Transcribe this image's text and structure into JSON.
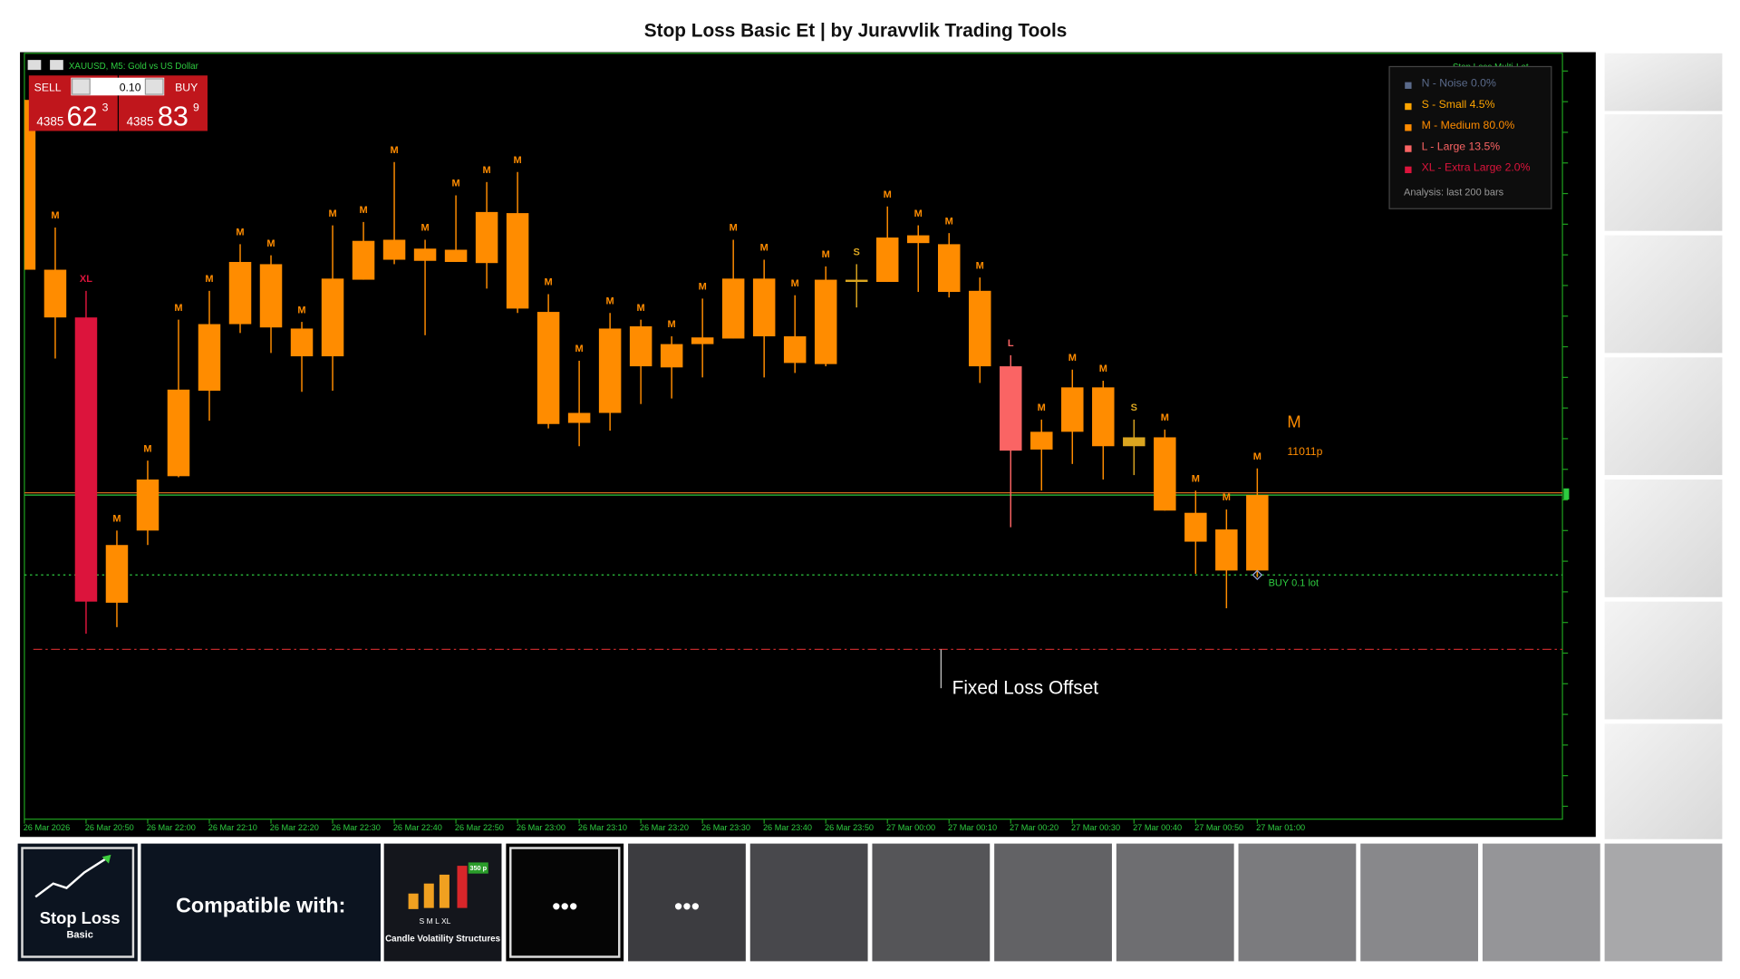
{
  "title": "Stop Loss Basic Et | by Juravvlik Trading Tools",
  "toolbar": {
    "symbol": "XAUUSD, M5:  Gold vs US Dollar",
    "sell": "SELL",
    "buy": "BUY",
    "lot": "0.10",
    "bid": {
      "small": "4385",
      "big": "62",
      "sup": "3"
    },
    "ask": {
      "small": "4385",
      "big": "83",
      "sup": "9"
    }
  },
  "legend": {
    "title": "Stop Loss Multi-Lot",
    "entries": [
      {
        "text": "N - Noise 0.0%",
        "color": "#5a6a8a"
      },
      {
        "text": "S - Small 4.5%",
        "color": "#ffa500"
      },
      {
        "text": "M - Medium 80.0%",
        "color": "#ff8c00"
      },
      {
        "text": "L - Large 13.5%",
        "color": "#fa6464"
      },
      {
        "text": "XL - Extra Large 2.0%",
        "color": "#dc143c"
      }
    ],
    "note": "Analysis: last 200 bars"
  },
  "annotations": {
    "current_class": "M",
    "current_size": "11011p",
    "order": "BUY 0.1 lot",
    "offset": "Fixed Loss Offset"
  },
  "chart_data": {
    "type": "candlestick",
    "categories": [
      "26 Mar 2026",
      null,
      "26 Mar 20:50",
      null,
      "26 Mar 22:00",
      null,
      "26 Mar 22:10",
      null,
      "26 Mar 22:20",
      null,
      "26 Mar 22:30",
      null,
      "26 Mar 22:40",
      null,
      "26 Mar 22:50",
      null,
      "26 Mar 23:00",
      null,
      "26 Mar 23:10",
      null,
      "26 Mar 23:20",
      null,
      "26 Mar 23:30",
      null,
      "26 Mar 23:40",
      null,
      "26 Mar 23:50",
      null,
      "27 Mar 00:00",
      null,
      "27 Mar 00:10",
      null,
      "27 Mar 00:20",
      null,
      "27 Mar 00:30",
      null,
      "27 Mar 00:40",
      null,
      "27 Mar 00:50",
      null,
      "27 Mar 01:00"
    ],
    "labels": [
      null,
      "M",
      "XL",
      "M",
      "M",
      "M",
      "M",
      "M",
      "M",
      "M",
      "M",
      "M",
      "M",
      "M",
      "M",
      "M",
      "M",
      "M",
      "M",
      "M",
      "M",
      "M",
      "M",
      "M",
      "M",
      "M",
      "M",
      "S",
      "M",
      "M",
      "M",
      "M",
      "L",
      "M",
      "M",
      "M",
      "S",
      "M",
      "M",
      "M",
      "M"
    ],
    "open": [
      4421.1,
      4405.8,
      4401.5,
      4381.0,
      4386.9,
      4395.0,
      4400.9,
      4406.5,
      4406.3,
      4400.5,
      4405.0,
      4408.4,
      4408.5,
      4407.7,
      4407.6,
      4411.0,
      4410.9,
      4402.0,
      4392.9,
      4400.5,
      4400.7,
      4399.1,
      4399.7,
      4405.0,
      4405.0,
      4399.8,
      4404.9,
      4404.9,
      4408.7,
      4408.9,
      4408.1,
      4403.9,
      4397.1,
      4391.2,
      4395.2,
      4395.2,
      4390.7,
      4390.7,
      4383.9,
      4382.4,
      4385.5
    ],
    "high": [
      4421.1,
      4409.6,
      4403.9,
      4382.3,
      4388.6,
      4401.3,
      4403.9,
      4408.1,
      4407.1,
      4401.1,
      4409.8,
      4410.1,
      4415.5,
      4408.5,
      4412.5,
      4413.7,
      4414.6,
      4403.6,
      4397.6,
      4401.9,
      4401.3,
      4399.8,
      4403.2,
      4408.5,
      4406.7,
      4403.5,
      4406.1,
      4406.3,
      4411.5,
      4409.8,
      4409.1,
      4405.1,
      4398.1,
      4392.3,
      4396.8,
      4395.8,
      4392.3,
      4391.4,
      4385.9,
      4384.2,
      4387.9
    ],
    "low": [
      4405.8,
      4397.8,
      4373.0,
      4373.6,
      4381.0,
      4387.1,
      4392.2,
      4400.1,
      4398.3,
      4394.8,
      4394.9,
      4404.9,
      4406.3,
      4399.9,
      4406.5,
      4404.1,
      4401.9,
      4391.5,
      4389.9,
      4391.3,
      4393.7,
      4394.2,
      4396.1,
      4399.6,
      4396.1,
      4396.5,
      4397.1,
      4402.4,
      4404.7,
      4403.8,
      4403.3,
      4395.6,
      4382.6,
      4385.9,
      4388.3,
      4386.9,
      4387.3,
      4384.1,
      4378.4,
      4375.3,
      4378.1
    ],
    "close": [
      4405.8,
      4401.5,
      4375.9,
      4375.8,
      4382.3,
      4387.2,
      4394.9,
      4400.9,
      4400.6,
      4398.0,
      4398.0,
      4404.9,
      4406.7,
      4406.6,
      4406.5,
      4406.4,
      4402.3,
      4391.9,
      4392.0,
      4392.9,
      4397.1,
      4397.0,
      4399.1,
      4399.6,
      4399.8,
      4397.4,
      4397.3,
      4404.7,
      4404.7,
      4408.2,
      4403.8,
      4397.1,
      4389.5,
      4389.6,
      4391.2,
      4389.9,
      4389.9,
      4384.1,
      4381.3,
      4378.7,
      4378.7
    ],
    "color": "#ff8c00",
    "label_colors": {
      "S": "#daa520",
      "M": "#ff8c00",
      "L": "#fa6464",
      "XL": "#dc143c"
    },
    "price_line": 4385.6,
    "order_level": 4378.3,
    "stop_level": 4371.6,
    "ylim": [
      4356.3,
      4425.3
    ]
  },
  "strip": {
    "product": "Stop Loss",
    "product_sub": "Basic",
    "compatible": "Compatible with:",
    "cvs": "Candle Volatility Structures",
    "cvs_badge": "350 p",
    "cvs_classes": "S  M  L  XL",
    "more": "•••",
    "more2": "•••"
  }
}
